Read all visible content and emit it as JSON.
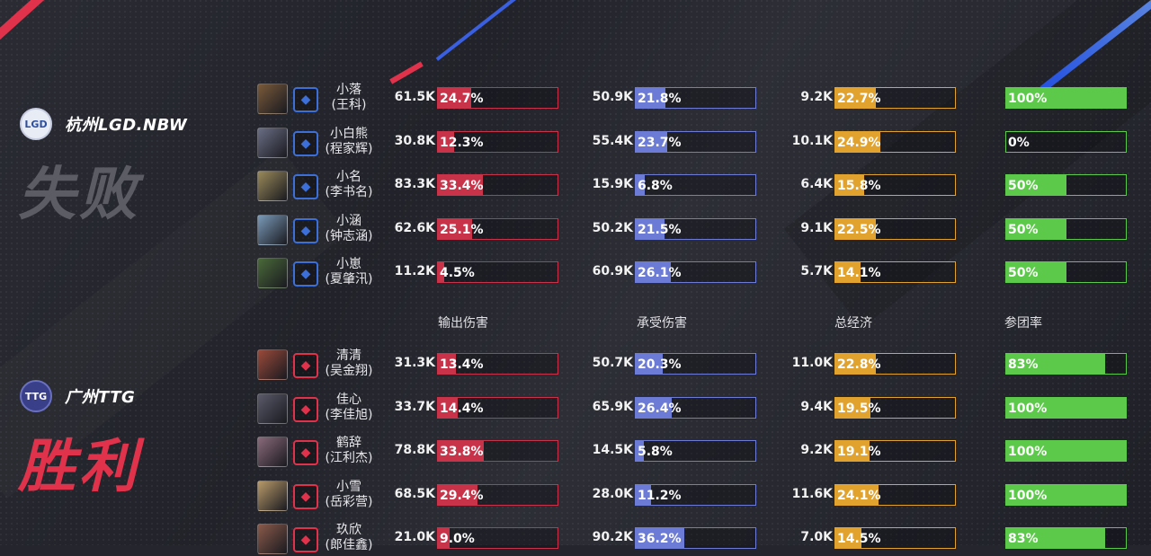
{
  "colors": {
    "dmg": "#c8334a",
    "taken": "#6b7bd6",
    "econ": "#e2a22e",
    "part": "#5cc94a"
  },
  "headers": {
    "damage": "输出伤害",
    "taken": "承受伤害",
    "economy": "总经济",
    "participation": "参团率"
  },
  "teams": [
    {
      "name": "杭州LGD.NBW",
      "result": "失败",
      "logo_icon": "lgd-logo-icon",
      "result_color": "#5a5b62",
      "logo_bg": "#e8ecf5",
      "logo_fg": "#2d4fa0",
      "logo_text": "LGD",
      "spell_color": "#3c6fd8",
      "players": [
        {
          "name": "小落",
          "real": "(王科)",
          "hero_icon": "hero-portrait-icon",
          "spell_icon": "summoner-spell-icon",
          "damage": "61.5K",
          "damage_pct": "24.7%",
          "taken": "50.9K",
          "taken_pct": "21.8%",
          "econ": "9.2K",
          "econ_pct": "22.7%",
          "part": "100%"
        },
        {
          "name": "小白熊",
          "real": "(程家辉)",
          "hero_icon": "hero-portrait-icon",
          "spell_icon": "summoner-spell-icon",
          "damage": "30.8K",
          "damage_pct": "12.3%",
          "taken": "55.4K",
          "taken_pct": "23.7%",
          "econ": "10.1K",
          "econ_pct": "24.9%",
          "part": "0%"
        },
        {
          "name": "小名",
          "real": "(李书名)",
          "hero_icon": "hero-portrait-icon",
          "spell_icon": "summoner-spell-icon",
          "damage": "83.3K",
          "damage_pct": "33.4%",
          "taken": "15.9K",
          "taken_pct": "6.8%",
          "econ": "6.4K",
          "econ_pct": "15.8%",
          "part": "50%"
        },
        {
          "name": "小涵",
          "real": "(钟志涵)",
          "hero_icon": "hero-portrait-icon",
          "spell_icon": "summoner-spell-icon",
          "damage": "62.6K",
          "damage_pct": "25.1%",
          "taken": "50.2K",
          "taken_pct": "21.5%",
          "econ": "9.1K",
          "econ_pct": "22.5%",
          "part": "50%"
        },
        {
          "name": "小崽",
          "real": "(夏肇汛)",
          "hero_icon": "hero-portrait-icon",
          "spell_icon": "summoner-spell-icon",
          "damage": "11.2K",
          "damage_pct": "4.5%",
          "taken": "60.9K",
          "taken_pct": "26.1%",
          "econ": "5.7K",
          "econ_pct": "14.1%",
          "part": "50%"
        }
      ]
    },
    {
      "name": "广州TTG",
      "result": "胜利",
      "logo_icon": "ttg-logo-icon",
      "result_color": "#e0324b",
      "logo_bg": "#3a3f8a",
      "logo_fg": "#ffffff",
      "logo_text": "TTG",
      "spell_color": "#e0324b",
      "players": [
        {
          "name": "清清",
          "real": "(吴金翔)",
          "hero_icon": "hero-portrait-icon",
          "spell_icon": "summoner-spell-icon",
          "damage": "31.3K",
          "damage_pct": "13.4%",
          "taken": "50.7K",
          "taken_pct": "20.3%",
          "econ": "11.0K",
          "econ_pct": "22.8%",
          "part": "83%"
        },
        {
          "name": "佳心",
          "real": "(李佳旭)",
          "hero_icon": "hero-portrait-icon",
          "spell_icon": "summoner-spell-icon",
          "damage": "33.7K",
          "damage_pct": "14.4%",
          "taken": "65.9K",
          "taken_pct": "26.4%",
          "econ": "9.4K",
          "econ_pct": "19.5%",
          "part": "100%"
        },
        {
          "name": "鹤辞",
          "real": "(江利杰)",
          "hero_icon": "hero-portrait-icon",
          "spell_icon": "summoner-spell-icon",
          "damage": "78.8K",
          "damage_pct": "33.8%",
          "taken": "14.5K",
          "taken_pct": "5.8%",
          "econ": "9.2K",
          "econ_pct": "19.1%",
          "part": "100%"
        },
        {
          "name": "小雪",
          "real": "(岳彩营)",
          "hero_icon": "hero-portrait-icon",
          "spell_icon": "summoner-spell-icon",
          "damage": "68.5K",
          "damage_pct": "29.4%",
          "taken": "28.0K",
          "taken_pct": "11.2%",
          "econ": "11.6K",
          "econ_pct": "24.1%",
          "part": "100%"
        },
        {
          "name": "玖欣",
          "real": "(郎佳鑫)",
          "hero_icon": "hero-portrait-icon",
          "spell_icon": "summoner-spell-icon",
          "damage": "21.0K",
          "damage_pct": "9.0%",
          "taken": "90.2K",
          "taken_pct": "36.2%",
          "econ": "7.0K",
          "econ_pct": "14.5%",
          "part": "83%"
        }
      ]
    }
  ]
}
